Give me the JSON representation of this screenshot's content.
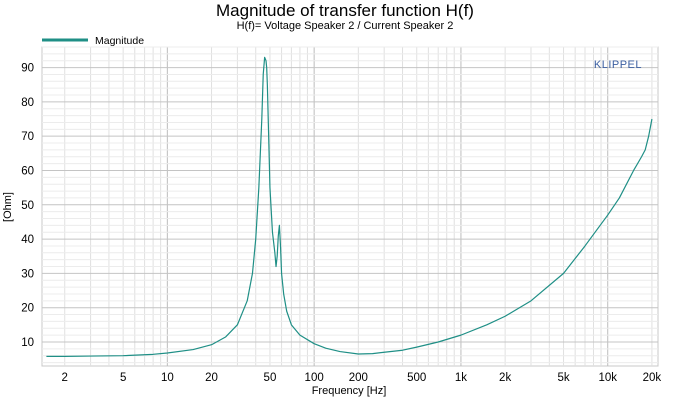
{
  "chart_data": {
    "type": "line",
    "title": "Magnitude of transfer function H(f)",
    "subtitle": "H(f)= Voltage Speaker 2 / Current Speaker 2",
    "xlabel": "Frequency [Hz]",
    "ylabel": "[Ohm]",
    "xscale": "log",
    "xlim": [
      1.4,
      22000
    ],
    "ylim": [
      3,
      96
    ],
    "grid": true,
    "legend_position": "top-left",
    "watermark": "KLIPPEL",
    "x_ticks": [
      {
        "value": 2,
        "label": "2"
      },
      {
        "value": 5,
        "label": "5"
      },
      {
        "value": 10,
        "label": "10"
      },
      {
        "value": 20,
        "label": "20"
      },
      {
        "value": 50,
        "label": "50"
      },
      {
        "value": 100,
        "label": "100"
      },
      {
        "value": 200,
        "label": "200"
      },
      {
        "value": 500,
        "label": "500"
      },
      {
        "value": 1000,
        "label": "1k"
      },
      {
        "value": 2000,
        "label": "2k"
      },
      {
        "value": 5000,
        "label": "5k"
      },
      {
        "value": 10000,
        "label": "10k"
      },
      {
        "value": 20000,
        "label": "20k"
      }
    ],
    "y_ticks": [
      10,
      20,
      30,
      40,
      50,
      60,
      70,
      80,
      90
    ],
    "series": [
      {
        "name": "Magnitude",
        "color": "#1f8f86",
        "x": [
          1.5,
          2,
          3,
          5,
          8,
          10,
          15,
          20,
          25,
          30,
          35,
          38,
          40,
          42,
          44,
          45,
          46,
          47,
          47.5,
          48,
          49,
          50,
          52,
          54,
          55,
          56,
          57,
          58,
          59,
          60,
          62,
          65,
          70,
          80,
          100,
          120,
          150,
          200,
          250,
          300,
          400,
          500,
          700,
          1000,
          1500,
          2000,
          3000,
          5000,
          7000,
          10000,
          12000,
          15000,
          17000,
          18000,
          19000,
          20000
        ],
        "y": [
          5.8,
          5.8,
          5.9,
          6.0,
          6.4,
          6.8,
          7.8,
          9.2,
          11.5,
          15.0,
          22.0,
          30.0,
          40.0,
          55.0,
          75.0,
          88.0,
          93.0,
          92.0,
          90.0,
          85.0,
          70.0,
          55.0,
          42.0,
          36.0,
          32.0,
          35.0,
          41.0,
          44.0,
          38.0,
          30.0,
          24.0,
          19.0,
          15.0,
          12.0,
          9.5,
          8.2,
          7.2,
          6.5,
          6.6,
          7.0,
          7.6,
          8.5,
          10.0,
          12.0,
          15.0,
          17.5,
          22.0,
          30.0,
          38.0,
          47.0,
          52.0,
          60.0,
          64.0,
          66.0,
          70.0,
          75.0
        ]
      }
    ]
  }
}
